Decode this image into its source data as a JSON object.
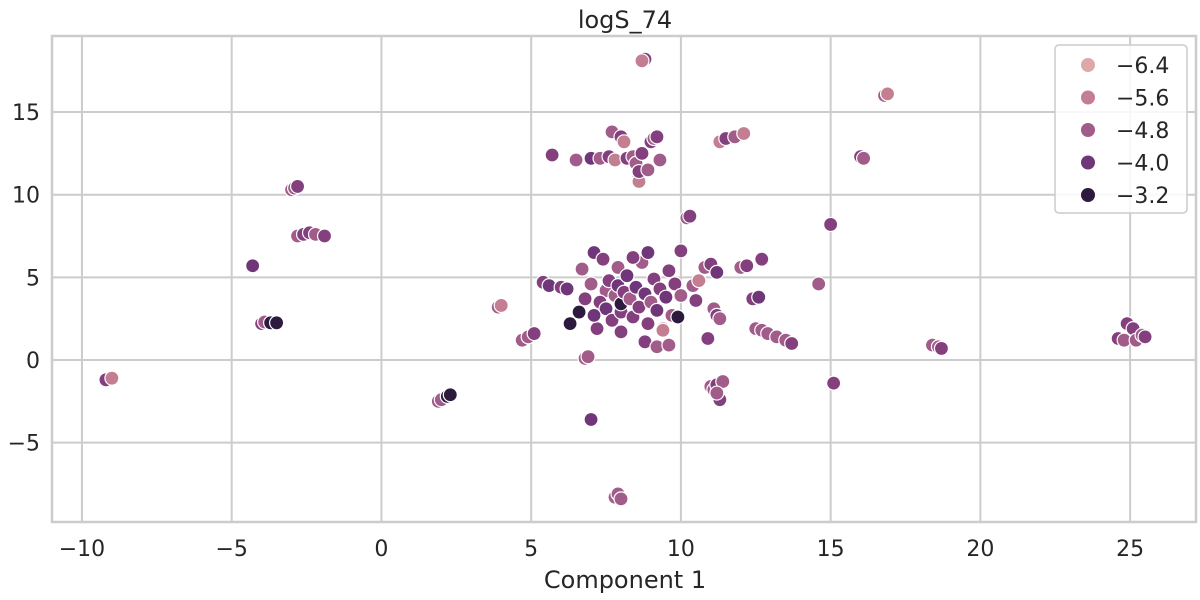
{
  "chart_data": {
    "type": "scatter",
    "title": "logS_74",
    "xlabel": "Component 1",
    "ylabel": "",
    "xlim": [
      -11,
      27.2
    ],
    "ylim": [
      -9.8,
      19.6
    ],
    "xticks": [
      -10,
      -5,
      0,
      5,
      10,
      15,
      20,
      25
    ],
    "xtick_labels": [
      "−10",
      "−5",
      "0",
      "5",
      "10",
      "15",
      "20",
      "25"
    ],
    "yticks": [
      -5,
      0,
      5,
      10,
      15
    ],
    "ytick_labels": [
      "−5",
      "0",
      "5",
      "10",
      "15"
    ],
    "grid": true,
    "legend": {
      "position": "top-right",
      "entries": [
        {
          "label": "−6.4",
          "value": -6.4,
          "color": "#dfa8a8"
        },
        {
          "label": "−5.6",
          "value": -5.6,
          "color": "#c47e92"
        },
        {
          "label": "−4.8",
          "value": -4.8,
          "color": "#a15c8a"
        },
        {
          "label": "−4.0",
          "value": -4.0,
          "color": "#70367a"
        },
        {
          "label": "−3.2",
          "value": -3.2,
          "color": "#2d1a3f"
        }
      ]
    },
    "colors": {
      "c1": "#dfa8a8",
      "c2": "#c47e92",
      "c3": "#a15c8a",
      "c4": "#843f7f",
      "c5": "#70367a",
      "c6": "#2d1a3f"
    },
    "points": [
      {
        "x": -9.2,
        "y": -1.2,
        "c": "c4"
      },
      {
        "x": -9.0,
        "y": -1.1,
        "c": "c2"
      },
      {
        "x": -4.3,
        "y": 5.7,
        "c": "c5"
      },
      {
        "x": -4.0,
        "y": 2.2,
        "c": "c4"
      },
      {
        "x": -3.9,
        "y": 2.3,
        "c": "c3"
      },
      {
        "x": -3.7,
        "y": 2.25,
        "c": "c6"
      },
      {
        "x": -3.5,
        "y": 2.25,
        "c": "c6"
      },
      {
        "x": -3.0,
        "y": 10.3,
        "c": "c3"
      },
      {
        "x": -2.9,
        "y": 10.4,
        "c": "c3"
      },
      {
        "x": -2.8,
        "y": 10.5,
        "c": "c4"
      },
      {
        "x": -2.8,
        "y": 7.5,
        "c": "c3"
      },
      {
        "x": -2.6,
        "y": 7.6,
        "c": "c4"
      },
      {
        "x": -2.4,
        "y": 7.7,
        "c": "c4"
      },
      {
        "x": -2.2,
        "y": 7.6,
        "c": "c3"
      },
      {
        "x": -1.9,
        "y": 7.5,
        "c": "c4"
      },
      {
        "x": 1.9,
        "y": -2.5,
        "c": "c3"
      },
      {
        "x": 2.0,
        "y": -2.4,
        "c": "c3"
      },
      {
        "x": 2.2,
        "y": -2.2,
        "c": "c6"
      },
      {
        "x": 2.3,
        "y": -2.1,
        "c": "c6"
      },
      {
        "x": 3.9,
        "y": 3.2,
        "c": "c3"
      },
      {
        "x": 4.0,
        "y": 3.3,
        "c": "c2"
      },
      {
        "x": 4.7,
        "y": 1.2,
        "c": "c3"
      },
      {
        "x": 4.9,
        "y": 1.4,
        "c": "c3"
      },
      {
        "x": 5.1,
        "y": 1.6,
        "c": "c4"
      },
      {
        "x": 5.4,
        "y": 4.7,
        "c": "c4"
      },
      {
        "x": 5.6,
        "y": 4.5,
        "c": "c5"
      },
      {
        "x": 5.7,
        "y": 12.4,
        "c": "c4"
      },
      {
        "x": 6.0,
        "y": 4.4,
        "c": "c4"
      },
      {
        "x": 6.2,
        "y": 4.3,
        "c": "c5"
      },
      {
        "x": 6.3,
        "y": 2.2,
        "c": "c6"
      },
      {
        "x": 6.5,
        "y": 12.1,
        "c": "c3"
      },
      {
        "x": 6.6,
        "y": 2.9,
        "c": "c6"
      },
      {
        "x": 6.7,
        "y": 5.5,
        "c": "c3"
      },
      {
        "x": 6.8,
        "y": 0.1,
        "c": "c3"
      },
      {
        "x": 6.9,
        "y": 0.2,
        "c": "c3"
      },
      {
        "x": 7.0,
        "y": 12.2,
        "c": "c5"
      },
      {
        "x": 7.0,
        "y": -3.6,
        "c": "c5"
      },
      {
        "x": 7.1,
        "y": 6.5,
        "c": "c5"
      },
      {
        "x": 7.2,
        "y": 1.9,
        "c": "c4"
      },
      {
        "x": 7.3,
        "y": 12.2,
        "c": "c3"
      },
      {
        "x": 7.4,
        "y": 6.1,
        "c": "c4"
      },
      {
        "x": 7.5,
        "y": 4.2,
        "c": "c3"
      },
      {
        "x": 7.6,
        "y": 12.3,
        "c": "c4"
      },
      {
        "x": 7.7,
        "y": 13.8,
        "c": "c3"
      },
      {
        "x": 7.8,
        "y": 12.1,
        "c": "c2"
      },
      {
        "x": 7.9,
        "y": 5.6,
        "c": "c3"
      },
      {
        "x": 8.0,
        "y": 13.5,
        "c": "c4"
      },
      {
        "x": 8.1,
        "y": 13.2,
        "c": "c2"
      },
      {
        "x": 8.2,
        "y": 12.2,
        "c": "c4"
      },
      {
        "x": 8.4,
        "y": 12.3,
        "c": "c3"
      },
      {
        "x": 8.5,
        "y": 11.9,
        "c": "c3"
      },
      {
        "x": 8.6,
        "y": 11.0,
        "c": "c3"
      },
      {
        "x": 8.6,
        "y": 10.8,
        "c": "c2"
      },
      {
        "x": 8.6,
        "y": 11.4,
        "c": "c4"
      },
      {
        "x": 8.7,
        "y": 12.5,
        "c": "c4"
      },
      {
        "x": 8.8,
        "y": 18.2,
        "c": "c4"
      },
      {
        "x": 8.7,
        "y": 18.1,
        "c": "c2"
      },
      {
        "x": 8.9,
        "y": 11.5,
        "c": "c3"
      },
      {
        "x": 9.0,
        "y": 13.2,
        "c": "c4"
      },
      {
        "x": 9.1,
        "y": 13.4,
        "c": "c3"
      },
      {
        "x": 9.2,
        "y": 13.5,
        "c": "c4"
      },
      {
        "x": 9.3,
        "y": 12.1,
        "c": "c3"
      },
      {
        "x": 7.8,
        "y": -8.3,
        "c": "c3"
      },
      {
        "x": 7.9,
        "y": -8.1,
        "c": "c3"
      },
      {
        "x": 8.0,
        "y": -8.4,
        "c": "c3"
      },
      {
        "x": 7.3,
        "y": 3.5,
        "c": "c4"
      },
      {
        "x": 7.5,
        "y": 3.1,
        "c": "c5"
      },
      {
        "x": 7.6,
        "y": 4.8,
        "c": "c4"
      },
      {
        "x": 7.7,
        "y": 2.4,
        "c": "c4"
      },
      {
        "x": 7.8,
        "y": 3.9,
        "c": "c3"
      },
      {
        "x": 7.9,
        "y": 4.5,
        "c": "c5"
      },
      {
        "x": 8.0,
        "y": 2.9,
        "c": "c4"
      },
      {
        "x": 8.0,
        "y": 3.4,
        "c": "c6"
      },
      {
        "x": 8.1,
        "y": 4.1,
        "c": "c4"
      },
      {
        "x": 8.2,
        "y": 5.1,
        "c": "c5"
      },
      {
        "x": 8.3,
        "y": 3.7,
        "c": "c3"
      },
      {
        "x": 8.4,
        "y": 2.6,
        "c": "c4"
      },
      {
        "x": 8.5,
        "y": 4.4,
        "c": "c5"
      },
      {
        "x": 8.6,
        "y": 3.2,
        "c": "c4"
      },
      {
        "x": 8.7,
        "y": 5.9,
        "c": "c3"
      },
      {
        "x": 8.8,
        "y": 4.0,
        "c": "c5"
      },
      {
        "x": 8.9,
        "y": 2.2,
        "c": "c4"
      },
      {
        "x": 9.0,
        "y": 3.5,
        "c": "c3"
      },
      {
        "x": 9.1,
        "y": 4.9,
        "c": "c4"
      },
      {
        "x": 9.2,
        "y": 3.0,
        "c": "c5"
      },
      {
        "x": 9.3,
        "y": 4.3,
        "c": "c4"
      },
      {
        "x": 9.4,
        "y": 1.9,
        "c": "c3"
      },
      {
        "x": 9.5,
        "y": 3.8,
        "c": "c5"
      },
      {
        "x": 9.6,
        "y": 5.4,
        "c": "c4"
      },
      {
        "x": 9.7,
        "y": 2.7,
        "c": "c3"
      },
      {
        "x": 9.8,
        "y": 4.6,
        "c": "c4"
      },
      {
        "x": 9.9,
        "y": 2.6,
        "c": "c6"
      },
      {
        "x": 10.0,
        "y": 6.6,
        "c": "c4"
      },
      {
        "x": 10.0,
        "y": 3.9,
        "c": "c3"
      },
      {
        "x": 8.4,
        "y": 6.2,
        "c": "c4"
      },
      {
        "x": 8.9,
        "y": 6.5,
        "c": "c5"
      },
      {
        "x": 8.0,
        "y": 1.7,
        "c": "c4"
      },
      {
        "x": 8.8,
        "y": 1.1,
        "c": "c4"
      },
      {
        "x": 9.2,
        "y": 0.8,
        "c": "c3"
      },
      {
        "x": 9.4,
        "y": 1.8,
        "c": "c2"
      },
      {
        "x": 9.6,
        "y": 0.9,
        "c": "c3"
      },
      {
        "x": 7.0,
        "y": 4.6,
        "c": "c3"
      },
      {
        "x": 7.1,
        "y": 2.7,
        "c": "c5"
      },
      {
        "x": 6.8,
        "y": 3.7,
        "c": "c4"
      },
      {
        "x": 10.2,
        "y": 8.6,
        "c": "c3"
      },
      {
        "x": 10.3,
        "y": 8.7,
        "c": "c4"
      },
      {
        "x": 10.4,
        "y": 4.5,
        "c": "c3"
      },
      {
        "x": 10.5,
        "y": 3.6,
        "c": "c4"
      },
      {
        "x": 10.6,
        "y": 4.8,
        "c": "c2"
      },
      {
        "x": 10.8,
        "y": 5.6,
        "c": "c3"
      },
      {
        "x": 10.9,
        "y": 1.3,
        "c": "c4"
      },
      {
        "x": 11.0,
        "y": 5.8,
        "c": "c4"
      },
      {
        "x": 11.1,
        "y": 3.1,
        "c": "c3"
      },
      {
        "x": 11.2,
        "y": 5.3,
        "c": "c5"
      },
      {
        "x": 11.2,
        "y": 2.7,
        "c": "c4"
      },
      {
        "x": 11.3,
        "y": 2.5,
        "c": "c3"
      },
      {
        "x": 11.0,
        "y": -1.6,
        "c": "c3"
      },
      {
        "x": 11.1,
        "y": -1.8,
        "c": "c3"
      },
      {
        "x": 11.2,
        "y": -1.5,
        "c": "c4"
      },
      {
        "x": 11.3,
        "y": -2.4,
        "c": "c4"
      },
      {
        "x": 11.4,
        "y": -1.3,
        "c": "c3"
      },
      {
        "x": 11.2,
        "y": -2.0,
        "c": "c3"
      },
      {
        "x": 11.3,
        "y": 13.2,
        "c": "c2"
      },
      {
        "x": 11.5,
        "y": 13.4,
        "c": "c4"
      },
      {
        "x": 11.8,
        "y": 13.5,
        "c": "c3"
      },
      {
        "x": 12.1,
        "y": 13.7,
        "c": "c2"
      },
      {
        "x": 12.0,
        "y": 5.6,
        "c": "c3"
      },
      {
        "x": 12.2,
        "y": 5.7,
        "c": "c4"
      },
      {
        "x": 12.4,
        "y": 3.7,
        "c": "c4"
      },
      {
        "x": 12.6,
        "y": 3.8,
        "c": "c5"
      },
      {
        "x": 12.5,
        "y": 1.9,
        "c": "c3"
      },
      {
        "x": 12.7,
        "y": 1.8,
        "c": "c3"
      },
      {
        "x": 12.7,
        "y": 6.1,
        "c": "c4"
      },
      {
        "x": 12.9,
        "y": 1.6,
        "c": "c3"
      },
      {
        "x": 13.2,
        "y": 1.4,
        "c": "c3"
      },
      {
        "x": 13.5,
        "y": 1.2,
        "c": "c3"
      },
      {
        "x": 13.7,
        "y": 1.0,
        "c": "c4"
      },
      {
        "x": 14.6,
        "y": 4.6,
        "c": "c3"
      },
      {
        "x": 15.0,
        "y": 8.2,
        "c": "c4"
      },
      {
        "x": 15.1,
        "y": -1.4,
        "c": "c4"
      },
      {
        "x": 16.0,
        "y": 12.3,
        "c": "c4"
      },
      {
        "x": 16.1,
        "y": 12.2,
        "c": "c3"
      },
      {
        "x": 16.8,
        "y": 16.0,
        "c": "c3"
      },
      {
        "x": 16.9,
        "y": 16.1,
        "c": "c2"
      },
      {
        "x": 18.4,
        "y": 0.9,
        "c": "c3"
      },
      {
        "x": 18.6,
        "y": 0.8,
        "c": "c3"
      },
      {
        "x": 18.7,
        "y": 0.7,
        "c": "c4"
      },
      {
        "x": 24.6,
        "y": 1.3,
        "c": "c4"
      },
      {
        "x": 24.8,
        "y": 1.2,
        "c": "c3"
      },
      {
        "x": 24.9,
        "y": 2.2,
        "c": "c4"
      },
      {
        "x": 25.1,
        "y": 1.9,
        "c": "c4"
      },
      {
        "x": 25.2,
        "y": 1.2,
        "c": "c3"
      },
      {
        "x": 25.4,
        "y": 1.5,
        "c": "c3"
      },
      {
        "x": 25.5,
        "y": 1.4,
        "c": "c4"
      }
    ]
  }
}
